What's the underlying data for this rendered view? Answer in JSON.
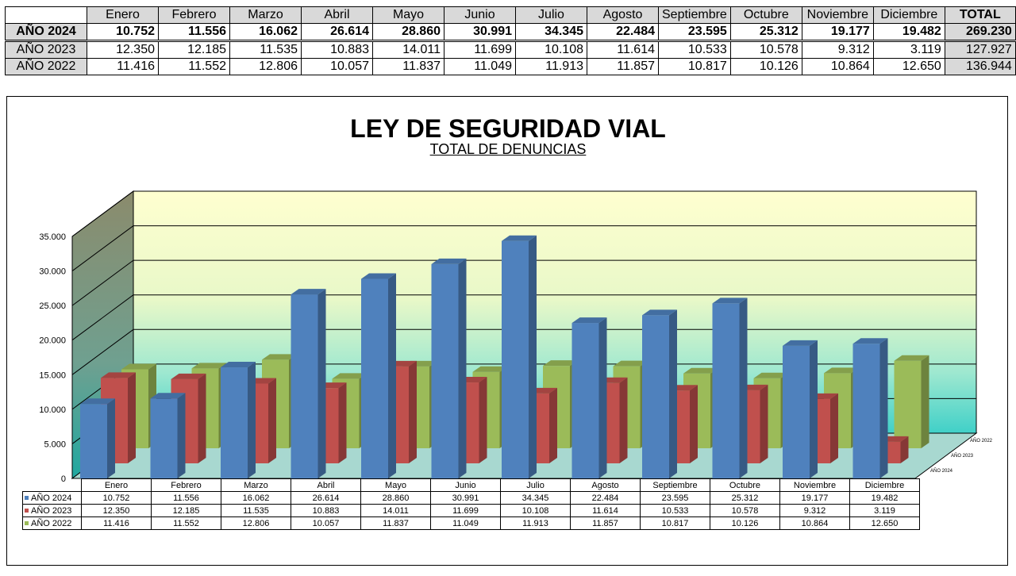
{
  "colors": {
    "y2024": "#4f81bd",
    "y2023": "#c0504d",
    "y2022": "#9bbb59"
  },
  "table": {
    "months": [
      "Enero",
      "Febrero",
      "Marzo",
      "Abril",
      "Mayo",
      "Junio",
      "Julio",
      "Agosto",
      "Septiembre",
      "Octubre",
      "Noviembre",
      "Diciembre"
    ],
    "total_label": "TOTAL",
    "rows": [
      {
        "label": "AÑO 2024",
        "values": [
          "10.752",
          "11.556",
          "16.062",
          "26.614",
          "28.860",
          "30.991",
          "34.345",
          "22.484",
          "23.595",
          "25.312",
          "19.177",
          "19.482"
        ],
        "total": "269.230"
      },
      {
        "label": "AÑO 2023",
        "values": [
          "12.350",
          "12.185",
          "11.535",
          "10.883",
          "14.011",
          "11.699",
          "10.108",
          "11.614",
          "10.533",
          "10.578",
          "9.312",
          "3.119"
        ],
        "total": "127.927"
      },
      {
        "label": "AÑO 2022",
        "values": [
          "11.416",
          "11.552",
          "12.806",
          "10.057",
          "11.837",
          "11.049",
          "11.913",
          "11.857",
          "10.817",
          "10.126",
          "10.864",
          "12.650"
        ],
        "total": "136.944"
      }
    ]
  },
  "chart_data": {
    "type": "bar",
    "title": "LEY DE SEGURIDAD VIAL",
    "subtitle": "TOTAL  DE  DENUNCIAS",
    "categories": [
      "Enero",
      "Febrero",
      "Marzo",
      "Abril",
      "Mayo",
      "Junio",
      "Julio",
      "Agosto",
      "Septiembre",
      "Octubre",
      "Noviembre",
      "Diciembre"
    ],
    "series": [
      {
        "name": "AÑO 2024",
        "values": [
          10752,
          11556,
          16062,
          26614,
          28860,
          30991,
          34345,
          22484,
          23595,
          25312,
          19177,
          19482
        ]
      },
      {
        "name": "AÑO 2023",
        "values": [
          12350,
          12185,
          11535,
          10883,
          14011,
          11699,
          10108,
          11614,
          10533,
          10578,
          9312,
          3119
        ]
      },
      {
        "name": "AÑO 2022",
        "values": [
          11416,
          11552,
          12806,
          10057,
          11837,
          11049,
          11913,
          11857,
          10817,
          10126,
          10864,
          12650
        ]
      }
    ],
    "ylim": [
      0,
      35000
    ],
    "yticks": [
      0,
      5000,
      10000,
      15000,
      20000,
      25000,
      30000,
      35000
    ],
    "ytick_labels": [
      "0",
      "5.000",
      "10.000",
      "15.000",
      "20.000",
      "25.000",
      "30.000",
      "35.000"
    ],
    "depth_labels": [
      "AÑO 2024",
      "AÑO 2023",
      "AÑO 2022"
    ],
    "grid": true,
    "style": "3d-clustered-depth"
  }
}
